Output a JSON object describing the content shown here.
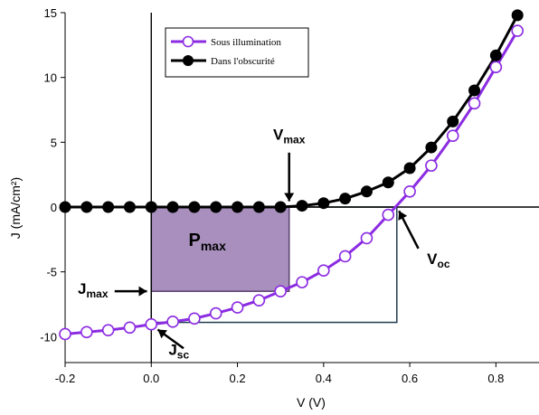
{
  "chart_data": {
    "type": "line",
    "xlabel": "V (V)",
    "ylabel": "J (mA/cm²)",
    "xlim": [
      -0.2,
      0.9
    ],
    "ylim": [
      -12,
      15
    ],
    "xticks": [
      -0.2,
      0,
      0.2,
      0.4,
      0.6,
      0.8
    ],
    "xtick_labels": [
      "-0.2",
      "0.0",
      "0.2",
      "0.4",
      "0.6",
      "0.8"
    ],
    "yticks": [
      -10,
      -5,
      0,
      5,
      10,
      15
    ],
    "ytick_labels": [
      "-10",
      "-5",
      "0",
      "5",
      "10",
      "15"
    ],
    "grid": false,
    "legend_position": "top-right",
    "series": [
      {
        "name": "Sous illumination",
        "color": "#8b2be2",
        "marker": "open-circle",
        "x": [
          -0.2,
          -0.15,
          -0.1,
          -0.05,
          0.0,
          0.05,
          0.1,
          0.15,
          0.2,
          0.25,
          0.3,
          0.35,
          0.4,
          0.45,
          0.5,
          0.55,
          0.6,
          0.65,
          0.7,
          0.75,
          0.8,
          0.85
        ],
        "y": [
          -9.8,
          -9.65,
          -9.5,
          -9.3,
          -9.05,
          -8.85,
          -8.6,
          -8.2,
          -7.75,
          -7.2,
          -6.5,
          -5.8,
          -4.9,
          -3.8,
          -2.4,
          -0.6,
          1.2,
          3.2,
          5.5,
          8.0,
          10.8,
          13.6
        ]
      },
      {
        "name": "Dans l'obscurité",
        "color": "#000000",
        "marker": "filled-circle",
        "x": [
          -0.2,
          -0.15,
          -0.1,
          -0.05,
          0.0,
          0.05,
          0.1,
          0.15,
          0.2,
          0.25,
          0.3,
          0.35,
          0.4,
          0.45,
          0.5,
          0.55,
          0.6,
          0.65,
          0.7,
          0.75,
          0.8,
          0.85
        ],
        "y": [
          0.0,
          0.0,
          0.0,
          0.0,
          0.0,
          0.0,
          0.0,
          0.0,
          0.0,
          0.0,
          0.0,
          0.1,
          0.3,
          0.65,
          1.2,
          1.9,
          3.0,
          4.6,
          6.6,
          9.0,
          11.7,
          14.8
        ]
      }
    ],
    "shaded_region": {
      "label_main": "P",
      "label_sub": "max",
      "x": [
        0.0,
        0.32
      ],
      "y": [
        -6.5,
        0.0
      ],
      "color": "#a88fbd"
    },
    "rectangle": {
      "x": [
        0.0,
        0.57
      ],
      "y": [
        -8.9,
        0.0
      ],
      "color": "#1f3b4d"
    },
    "annotations": [
      {
        "id": "vmax",
        "main": "V",
        "sub": "max",
        "target": [
          0.32,
          0.3
        ]
      },
      {
        "id": "jmax",
        "main": "J",
        "sub": "max",
        "target": [
          0.0,
          -6.5
        ]
      },
      {
        "id": "voc",
        "main": "V",
        "sub": "oc",
        "target": [
          0.57,
          0.0
        ]
      },
      {
        "id": "jsc",
        "main": "J",
        "sub": "sc",
        "target": [
          0.0,
          -9.05
        ]
      }
    ]
  }
}
